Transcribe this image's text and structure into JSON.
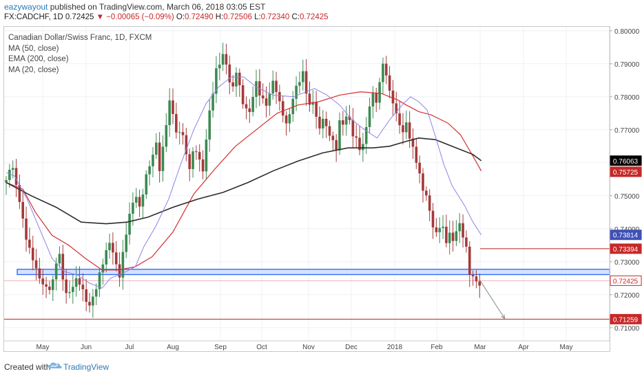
{
  "header": {
    "author": "eazywayout",
    "published_text": "published on TradingView.com, March 06, 2018 03:05 EST",
    "symbol": "FX:CADCHF, 1D",
    "last": "0.72425",
    "change_arrow": "▼",
    "change": "−0.00065 (−0.09%)",
    "o_label": "O:",
    "o_value": "0.72490",
    "h_label": "H:",
    "h_value": "0.72506",
    "l_label": "L:",
    "l_value": "0.72340",
    "c_label": "C:",
    "c_value": "0.72425"
  },
  "legend": {
    "instrument": "Canadian Dollar/Swiss Franc, 1D, FXCM",
    "ind1": "MA (50, close)",
    "ind2": "EMA (200, close)",
    "ind3": "MA (20, close)"
  },
  "footer": {
    "created_with": "Created with",
    "brand": "TradingView",
    "logo_icon": "tradingview-cloud-icon"
  },
  "colors": {
    "up": "#3c8a52",
    "down": "#a33a3a",
    "ma50": "#d32f2f",
    "ema200": "#2b2b2b",
    "ma20": "#8c82e6",
    "zone_fill": "#d6e2fb",
    "zone_stroke": "#2962ff",
    "hline": "#b71c1c",
    "tag_black": "#000000",
    "tag_red": "#c62828",
    "tag_blue": "#3f51b5"
  },
  "chart_data": {
    "type": "candlestick",
    "title": "Canadian Dollar/Swiss Franc, 1D, FXCM",
    "ylim": [
      0.706,
      0.8012
    ],
    "x_tick_labels": [
      "May",
      "Jun",
      "Jul",
      "Aug",
      "Sep",
      "Oct",
      "Nov",
      "Dec",
      "2018",
      "Feb",
      "Mar",
      "Apr",
      "May"
    ],
    "y_tick_labels": [
      "0.80000",
      "0.79000",
      "0.78000",
      "0.77000",
      "0.76000",
      "0.75000",
      "0.74000",
      "0.73000",
      "0.72000",
      "0.71000"
    ],
    "y_ticks": [
      0.8,
      0.79,
      0.78,
      0.77,
      0.76,
      0.75,
      0.74,
      0.73,
      0.72,
      0.71
    ],
    "grid": true,
    "axis_position": "right",
    "series": [
      {
        "name": "MA (50, close)",
        "points": [
          [
            0,
            0.754
          ],
          [
            20,
            0.752
          ],
          [
            35,
            0.745
          ],
          [
            55,
            0.738
          ],
          [
            75,
            0.735
          ],
          [
            95,
            0.731
          ],
          [
            115,
            0.7275
          ],
          [
            135,
            0.7275
          ],
          [
            155,
            0.7285
          ],
          [
            175,
            0.7315
          ],
          [
            200,
            0.739
          ],
          [
            225,
            0.7505
          ],
          [
            250,
            0.758
          ],
          [
            275,
            0.765
          ],
          [
            300,
            0.77
          ],
          [
            325,
            0.775
          ],
          [
            350,
            0.7775
          ],
          [
            375,
            0.7785
          ],
          [
            400,
            0.7805
          ],
          [
            425,
            0.7815
          ],
          [
            450,
            0.781
          ],
          [
            470,
            0.779
          ],
          [
            480,
            0.7775
          ],
          [
            495,
            0.7755
          ],
          [
            510,
            0.7745
          ],
          [
            530,
            0.772
          ],
          [
            545,
            0.7685
          ],
          [
            560,
            0.762
          ],
          [
            570,
            0.7575
          ]
        ]
      },
      {
        "name": "EMA (200, close)",
        "points": [
          [
            0,
            0.754
          ],
          [
            30,
            0.75
          ],
          [
            60,
            0.7465
          ],
          [
            90,
            0.742
          ],
          [
            120,
            0.7415
          ],
          [
            145,
            0.742
          ],
          [
            170,
            0.7435
          ],
          [
            200,
            0.7465
          ],
          [
            230,
            0.749
          ],
          [
            260,
            0.751
          ],
          [
            290,
            0.754
          ],
          [
            320,
            0.7575
          ],
          [
            350,
            0.7605
          ],
          [
            380,
            0.763
          ],
          [
            410,
            0.7645
          ],
          [
            440,
            0.7645
          ],
          [
            460,
            0.765
          ],
          [
            480,
            0.7665
          ],
          [
            495,
            0.7675
          ],
          [
            515,
            0.767
          ],
          [
            540,
            0.7645
          ],
          [
            560,
            0.7625
          ],
          [
            570,
            0.7606
          ]
        ]
      },
      {
        "name": "MA (20, close)",
        "points": [
          [
            0,
            0.757
          ],
          [
            10,
            0.756
          ],
          [
            25,
            0.749
          ],
          [
            40,
            0.74
          ],
          [
            55,
            0.731
          ],
          [
            70,
            0.727
          ],
          [
            85,
            0.726
          ],
          [
            100,
            0.7235
          ],
          [
            115,
            0.722
          ],
          [
            125,
            0.725
          ],
          [
            140,
            0.7265
          ],
          [
            155,
            0.7285
          ],
          [
            165,
            0.7345
          ],
          [
            180,
            0.741
          ],
          [
            195,
            0.749
          ],
          [
            210,
            0.76
          ],
          [
            225,
            0.77
          ],
          [
            240,
            0.778
          ],
          [
            255,
            0.783
          ],
          [
            270,
            0.786
          ],
          [
            285,
            0.786
          ],
          [
            300,
            0.783
          ],
          [
            320,
            0.7805
          ],
          [
            345,
            0.78
          ],
          [
            370,
            0.7825
          ],
          [
            385,
            0.7805
          ],
          [
            400,
            0.7775
          ],
          [
            415,
            0.773
          ],
          [
            430,
            0.77
          ],
          [
            445,
            0.7675
          ],
          [
            460,
            0.773
          ],
          [
            475,
            0.7775
          ],
          [
            485,
            0.78
          ],
          [
            495,
            0.7785
          ],
          [
            505,
            0.776
          ],
          [
            515,
            0.768
          ],
          [
            525,
            0.7595
          ],
          [
            535,
            0.753
          ],
          [
            550,
            0.747
          ],
          [
            560,
            0.742
          ],
          [
            570,
            0.7381
          ]
        ]
      }
    ],
    "price_path": [
      [
        0,
        0.754
      ],
      [
        4,
        0.758
      ],
      [
        8,
        0.757
      ],
      [
        14,
        0.75
      ],
      [
        20,
        0.742
      ],
      [
        26,
        0.735
      ],
      [
        32,
        0.732
      ],
      [
        38,
        0.727
      ],
      [
        44,
        0.724
      ],
      [
        50,
        0.721
      ],
      [
        56,
        0.723
      ],
      [
        60,
        0.729
      ],
      [
        64,
        0.731
      ],
      [
        68,
        0.724
      ],
      [
        74,
        0.719
      ],
      [
        80,
        0.724
      ],
      [
        86,
        0.726
      ],
      [
        92,
        0.722
      ],
      [
        98,
        0.716
      ],
      [
        104,
        0.718
      ],
      [
        110,
        0.723
      ],
      [
        116,
        0.729
      ],
      [
        122,
        0.735
      ],
      [
        126,
        0.737
      ],
      [
        130,
        0.731
      ],
      [
        136,
        0.727
      ],
      [
        140,
        0.733
      ],
      [
        146,
        0.742
      ],
      [
        150,
        0.746
      ],
      [
        156,
        0.749
      ],
      [
        160,
        0.745
      ],
      [
        166,
        0.753
      ],
      [
        170,
        0.758
      ],
      [
        176,
        0.763
      ],
      [
        180,
        0.767
      ],
      [
        184,
        0.759
      ],
      [
        190,
        0.768
      ],
      [
        194,
        0.777
      ],
      [
        198,
        0.779
      ],
      [
        202,
        0.77
      ],
      [
        206,
        0.766
      ],
      [
        210,
        0.77
      ],
      [
        214,
        0.766
      ],
      [
        218,
        0.757
      ],
      [
        222,
        0.761
      ],
      [
        226,
        0.766
      ],
      [
        232,
        0.762
      ],
      [
        236,
        0.758
      ],
      [
        240,
        0.768
      ],
      [
        244,
        0.775
      ],
      [
        248,
        0.781
      ],
      [
        252,
        0.787
      ],
      [
        256,
        0.789
      ],
      [
        260,
        0.792
      ],
      [
        264,
        0.789
      ],
      [
        268,
        0.785
      ],
      [
        272,
        0.783
      ],
      [
        276,
        0.789
      ],
      [
        280,
        0.784
      ],
      [
        284,
        0.779
      ],
      [
        288,
        0.777
      ],
      [
        292,
        0.775
      ],
      [
        296,
        0.78
      ],
      [
        300,
        0.783
      ],
      [
        304,
        0.78
      ],
      [
        308,
        0.778
      ],
      [
        312,
        0.777
      ],
      [
        316,
        0.781
      ],
      [
        320,
        0.785
      ],
      [
        324,
        0.783
      ],
      [
        328,
        0.779
      ],
      [
        332,
        0.776
      ],
      [
        336,
        0.772
      ],
      [
        340,
        0.775
      ],
      [
        344,
        0.779
      ],
      [
        348,
        0.782
      ],
      [
        352,
        0.784
      ],
      [
        356,
        0.786
      ],
      [
        360,
        0.781
      ],
      [
        364,
        0.777
      ],
      [
        368,
        0.779
      ],
      [
        372,
        0.775
      ],
      [
        376,
        0.771
      ],
      [
        380,
        0.775
      ],
      [
        384,
        0.771
      ],
      [
        388,
        0.769
      ],
      [
        392,
        0.766
      ],
      [
        396,
        0.763
      ],
      [
        400,
        0.772
      ],
      [
        404,
        0.77
      ],
      [
        408,
        0.774
      ],
      [
        412,
        0.772
      ],
      [
        416,
        0.769
      ],
      [
        420,
        0.768
      ],
      [
        424,
        0.765
      ],
      [
        428,
        0.767
      ],
      [
        432,
        0.771
      ],
      [
        436,
        0.778
      ],
      [
        440,
        0.78
      ],
      [
        444,
        0.778
      ],
      [
        448,
        0.783
      ],
      [
        452,
        0.789
      ],
      [
        456,
        0.786
      ],
      [
        460,
        0.781
      ],
      [
        464,
        0.779
      ],
      [
        468,
        0.775
      ],
      [
        472,
        0.773
      ],
      [
        476,
        0.77
      ],
      [
        480,
        0.773
      ],
      [
        484,
        0.768
      ],
      [
        488,
        0.764
      ],
      [
        492,
        0.76
      ],
      [
        496,
        0.755
      ],
      [
        500,
        0.751
      ],
      [
        504,
        0.749
      ],
      [
        508,
        0.745
      ],
      [
        512,
        0.741
      ],
      [
        516,
        0.739
      ],
      [
        520,
        0.742
      ],
      [
        524,
        0.741
      ],
      [
        528,
        0.737
      ],
      [
        532,
        0.739
      ],
      [
        536,
        0.736
      ],
      [
        540,
        0.739
      ],
      [
        544,
        0.74
      ],
      [
        548,
        0.737
      ],
      [
        552,
        0.733
      ],
      [
        556,
        0.726
      ],
      [
        560,
        0.7255
      ],
      [
        564,
        0.7245
      ],
      [
        568,
        0.7242
      ]
    ],
    "annotations": {
      "price_tags": [
        {
          "value": 0.76063,
          "label": "0.76063",
          "color_key": "tag_black"
        },
        {
          "value": 0.75725,
          "label": "0.75725",
          "color_key": "tag_red"
        },
        {
          "value": 0.73814,
          "label": "0.73814",
          "color_key": "tag_blue"
        },
        {
          "value": 0.73394,
          "label": "0.73394",
          "color_key": "tag_red"
        },
        {
          "value": 0.72425,
          "label": "0.72425",
          "color_key": "tag_outline"
        },
        {
          "value": 0.71259,
          "label": "0.71259",
          "color_key": "tag_red"
        }
      ],
      "support_zone": [
        0.7261,
        0.7277
      ],
      "resistance_line": 0.73394,
      "target_line": 0.71259,
      "current_price_line": 0.72425,
      "projection_arrow": {
        "from": [
          568,
          0.7245
        ],
        "to": [
          598,
          0.7128
        ]
      }
    }
  }
}
